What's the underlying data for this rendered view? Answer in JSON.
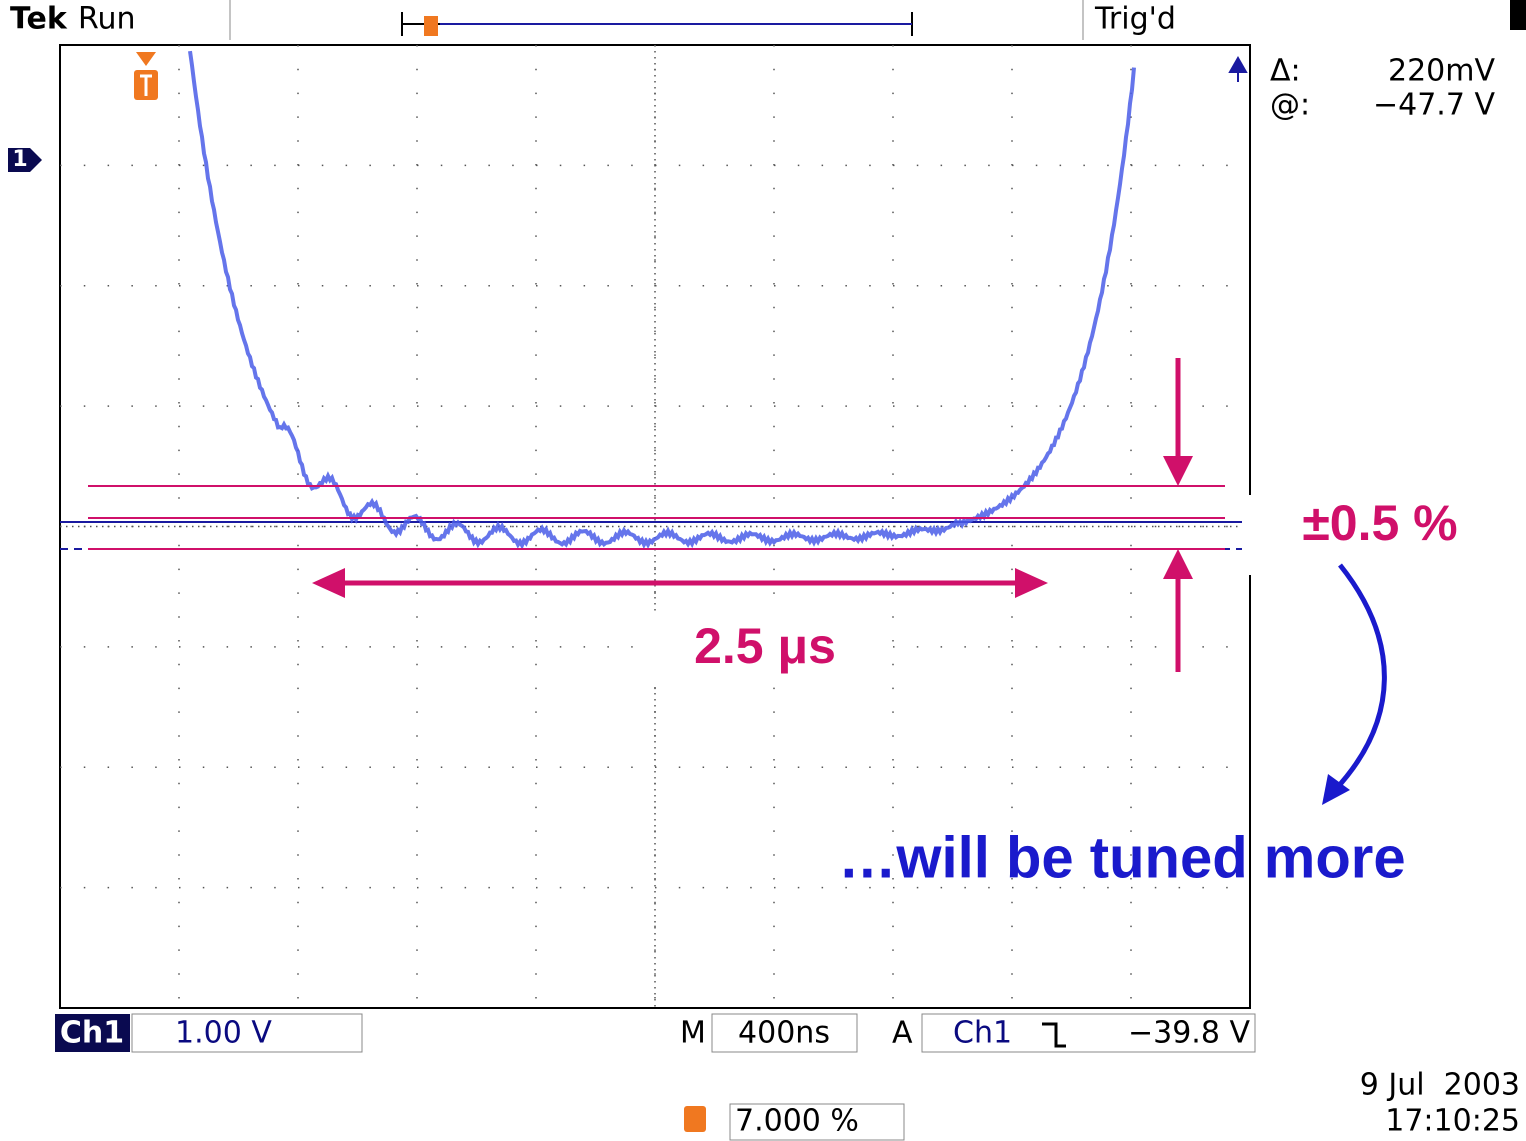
{
  "header": {
    "brand": "Tek",
    "status": "Run",
    "trigger_state": "Trig'd"
  },
  "cursor_readout": {
    "delta_label": "Δ:",
    "delta_value": "220mV",
    "at_label": "@:",
    "at_value": "−47.7 V"
  },
  "channel_marker": "1",
  "annotations": {
    "tolerance": "±0.5 %",
    "duration": "2.5 μs",
    "note": "…will be tuned more"
  },
  "footer": {
    "channel": "Ch1",
    "volts_per_div": "1.00 V",
    "time_prefix": "M",
    "time_per_div": "400ns",
    "trigger_prefix": "A",
    "trigger_channel": "Ch1",
    "trigger_level": "−39.8 V",
    "trigger_position": "7.000 %",
    "date": "9 Jul  2003",
    "time": "17:10:25"
  }
}
